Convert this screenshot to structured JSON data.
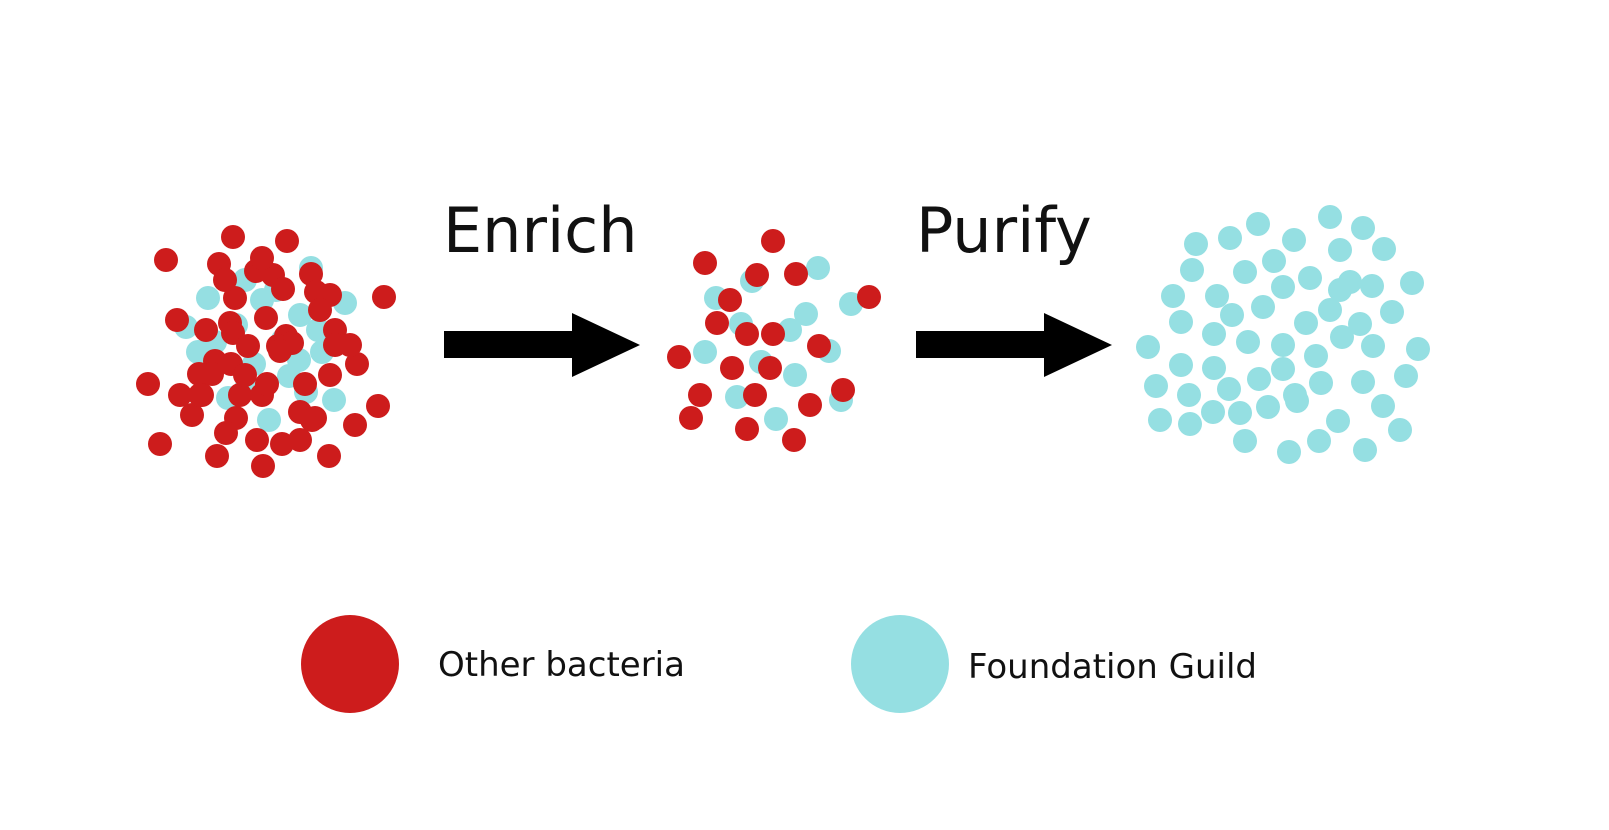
{
  "colors": {
    "other_bacteria": "#CD1C1C",
    "foundation_guild": "#95DFE2",
    "arrow": "#000000",
    "background": "#FFFFFF"
  },
  "steps": [
    {
      "label": "Enrich"
    },
    {
      "label": "Purify"
    }
  ],
  "legend": {
    "items": [
      {
        "label": "Other bacteria",
        "color_key": "other_bacteria"
      },
      {
        "label": "Foundation Guild",
        "color_key": "foundation_guild"
      }
    ]
  },
  "stages": [
    {
      "name": "initial",
      "other_bacteria_visible": 58,
      "foundation_guild_visible": 22
    },
    {
      "name": "enriched",
      "other_bacteria_visible": 20,
      "foundation_guild_visible": 14
    },
    {
      "name": "purified",
      "other_bacteria_visible": 0,
      "foundation_guild_visible": 58
    }
  ]
}
